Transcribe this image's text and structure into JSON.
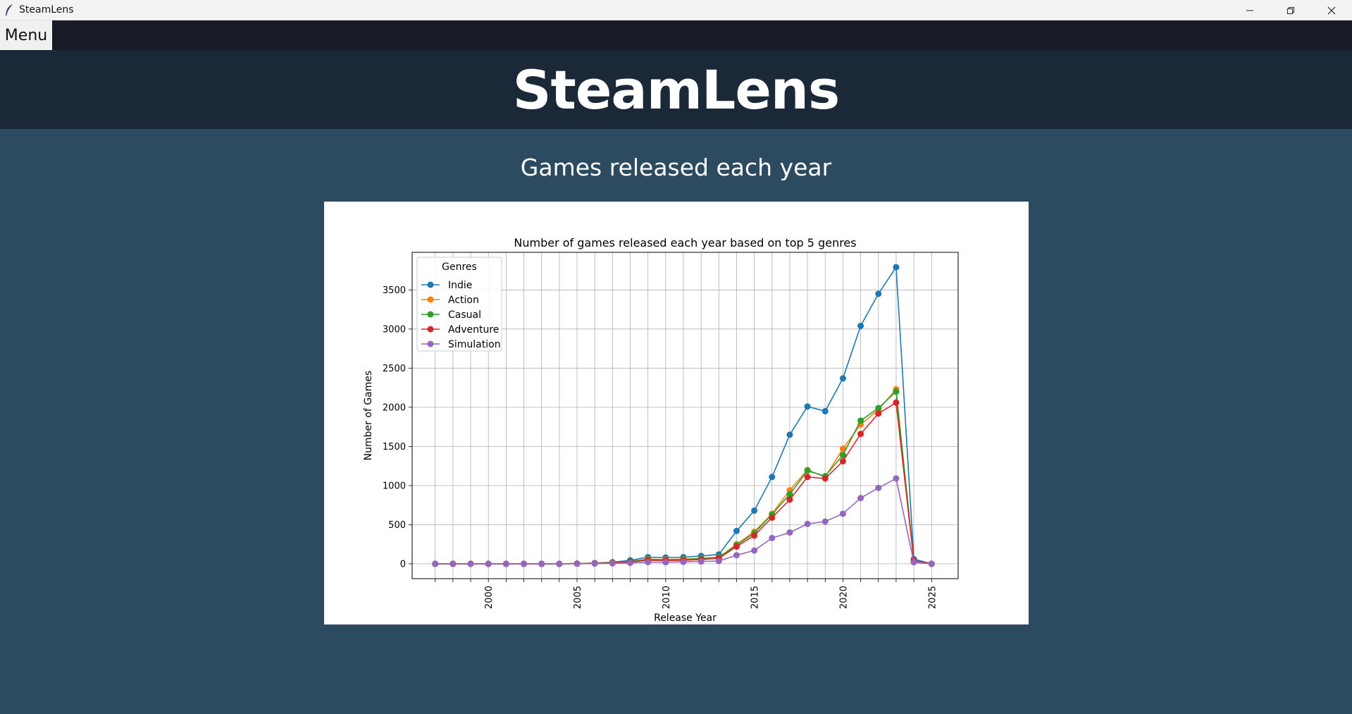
{
  "window": {
    "title": "SteamLens",
    "icon": "feather-icon",
    "controls": [
      "minimize-icon",
      "restore-icon",
      "close-icon"
    ]
  },
  "menubar": {
    "menu_label": "Menu"
  },
  "header": {
    "title": "SteamLens"
  },
  "section": {
    "title": "Games released each year"
  },
  "colors": {
    "titlebar": "#f3f3f3",
    "menubar": "#171c26",
    "header": "#1b2838",
    "body": "#2c4a60",
    "panel": "#ffffff"
  },
  "chart_data": {
    "type": "line",
    "title": "Number of games released each year based on top 5 genres",
    "xlabel": "Release Year",
    "ylabel": "Number of Games",
    "xlim": [
      1995.7,
      2026.5
    ],
    "ylim": [
      -190,
      3980
    ],
    "x_ticks": [
      2000,
      2005,
      2010,
      2015,
      2020,
      2025
    ],
    "y_ticks": [
      0,
      500,
      1000,
      1500,
      2000,
      2500,
      3000,
      3500
    ],
    "grid": true,
    "legend": {
      "title": "Genres",
      "placement": "top-left"
    },
    "x": [
      1997,
      1998,
      1999,
      2000,
      2001,
      2002,
      2003,
      2004,
      2005,
      2006,
      2007,
      2008,
      2009,
      2010,
      2011,
      2012,
      2013,
      2014,
      2015,
      2016,
      2017,
      2018,
      2019,
      2020,
      2021,
      2022,
      2023,
      2024,
      2025
    ],
    "series": [
      {
        "name": "Indie",
        "color": "#1f77b4",
        "values": [
          0,
          0,
          0,
          0,
          0,
          0,
          0,
          0,
          3,
          10,
          20,
          45,
          85,
          80,
          85,
          100,
          120,
          420,
          680,
          1110,
          1650,
          2010,
          1950,
          2370,
          3040,
          3450,
          3790,
          60,
          0
        ]
      },
      {
        "name": "Action",
        "color": "#ff7f0e",
        "values": [
          0,
          0,
          0,
          0,
          0,
          0,
          0,
          0,
          3,
          8,
          15,
          30,
          60,
          55,
          60,
          70,
          85,
          250,
          410,
          640,
          940,
          1200,
          1110,
          1470,
          1780,
          1970,
          2230,
          40,
          0
        ]
      },
      {
        "name": "Casual",
        "color": "#2ca02c",
        "values": [
          0,
          0,
          0,
          0,
          0,
          0,
          0,
          0,
          3,
          8,
          15,
          30,
          55,
          50,
          55,
          65,
          80,
          240,
          390,
          630,
          890,
          1190,
          1120,
          1390,
          1830,
          1990,
          2200,
          40,
          0
        ]
      },
      {
        "name": "Adventure",
        "color": "#d62728",
        "values": [
          0,
          0,
          0,
          0,
          0,
          0,
          0,
          0,
          2,
          6,
          12,
          25,
          45,
          42,
          45,
          55,
          70,
          220,
          360,
          590,
          820,
          1110,
          1090,
          1310,
          1660,
          1920,
          2060,
          40,
          0
        ]
      },
      {
        "name": "Simulation",
        "color": "#9467bd",
        "values": [
          0,
          0,
          0,
          0,
          0,
          0,
          0,
          0,
          1,
          3,
          6,
          12,
          22,
          20,
          25,
          30,
          35,
          110,
          170,
          330,
          400,
          510,
          540,
          640,
          840,
          970,
          1090,
          20,
          0
        ]
      }
    ]
  }
}
